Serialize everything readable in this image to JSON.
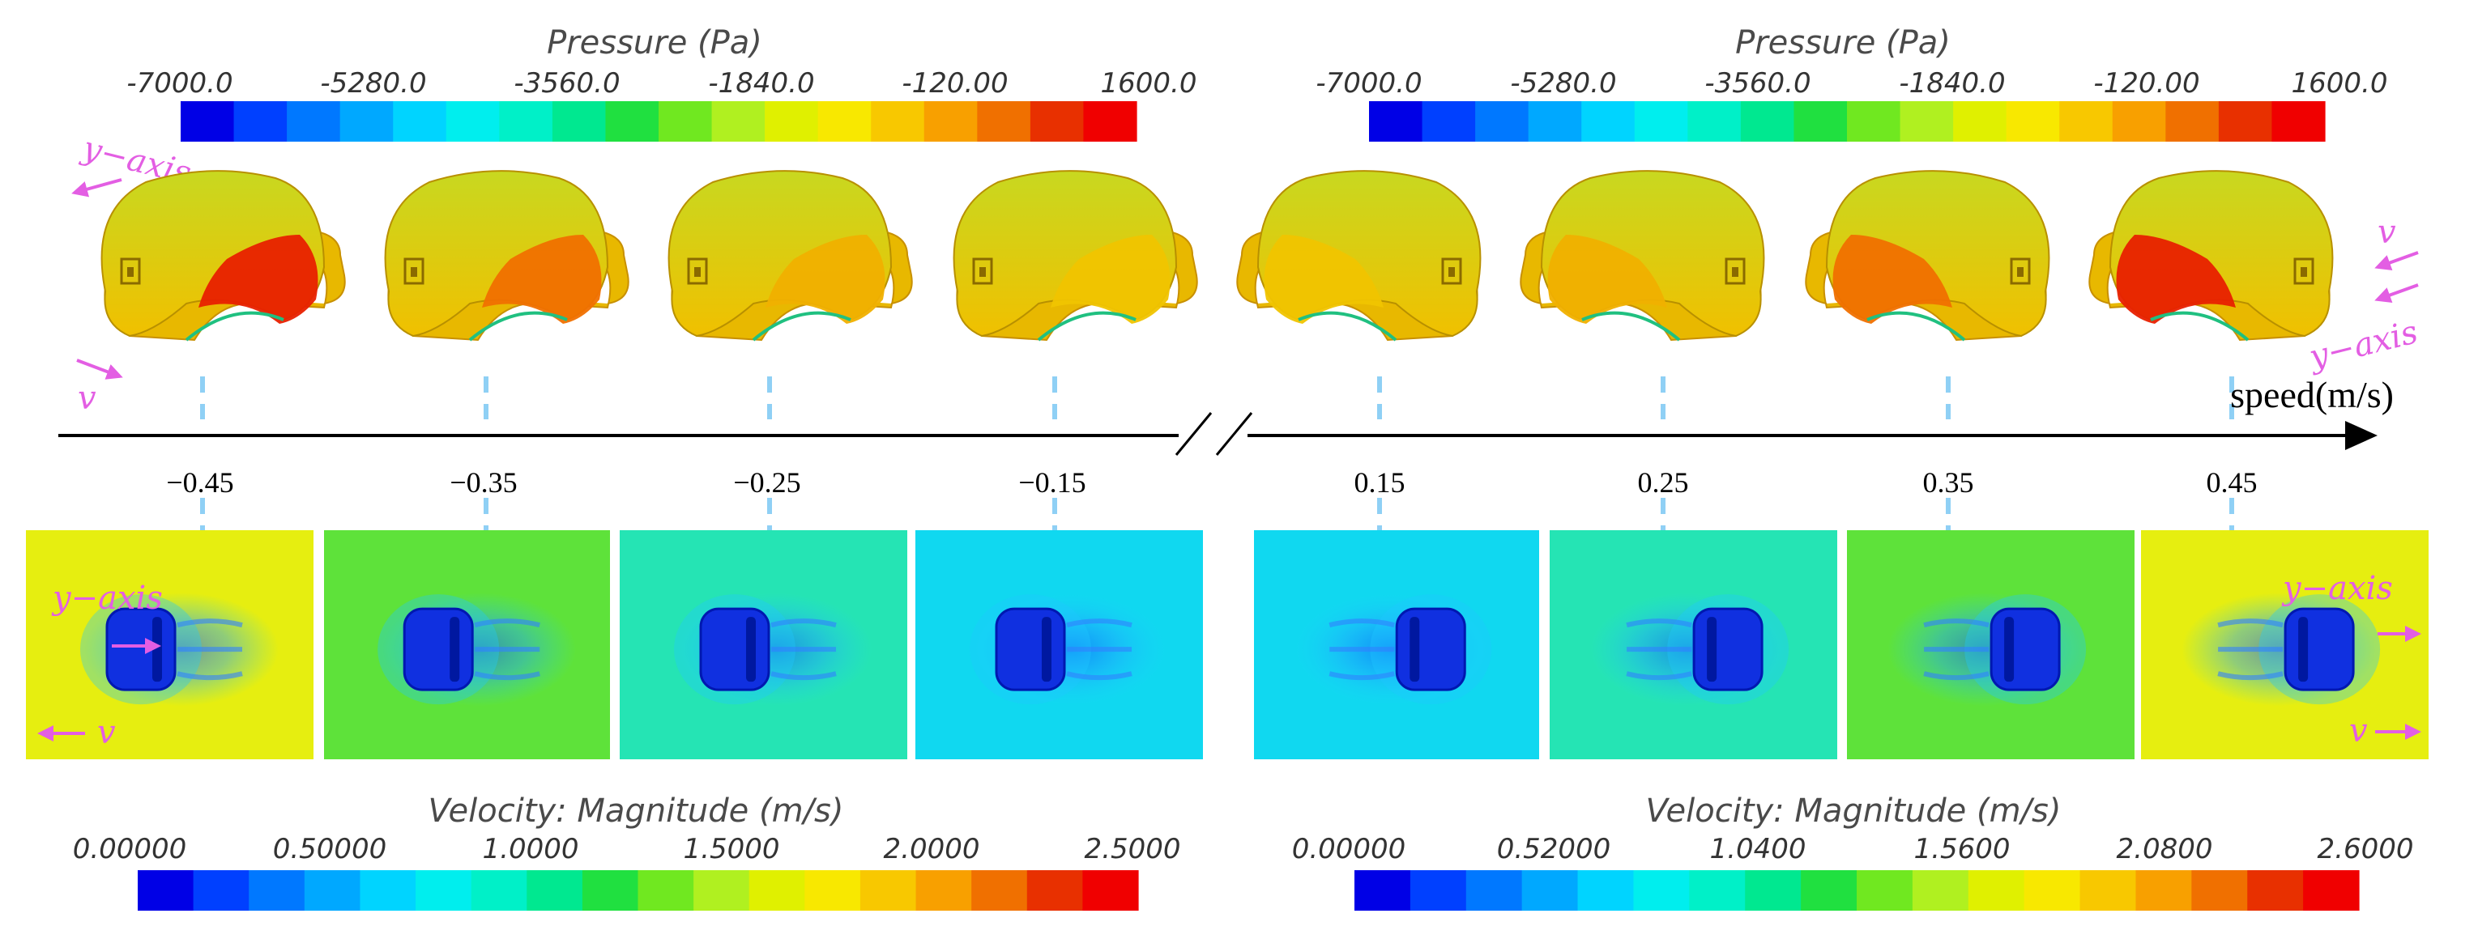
{
  "colors": {
    "jet": [
      "#0000e6",
      "#0040ff",
      "#0078ff",
      "#00a8ff",
      "#00d4ff",
      "#00eeee",
      "#00f0c8",
      "#00e890",
      "#20e040",
      "#70e820",
      "#b0f020",
      "#e0f000",
      "#f8e800",
      "#f8c800",
      "#f8a000",
      "#f07000",
      "#e83000",
      "#f00000"
    ],
    "dashed_line": "#8fd0f5",
    "annotation": "#e35ee3",
    "axis": "#000000"
  },
  "pressure_colorbars": [
    {
      "title": "Pressure (Pa)",
      "ticks": [
        "-7000.0",
        "-5280.0",
        "-3560.0",
        "-1840.0",
        "-120.00",
        "1600.0"
      ]
    },
    {
      "title": "Pressure (Pa)",
      "ticks": [
        "-7000.0",
        "-5280.0",
        "-3560.0",
        "-1840.0",
        "-120.00",
        "1600.0"
      ]
    }
  ],
  "velocity_colorbars": [
    {
      "title": "Velocity: Magnitude (m/s)",
      "ticks": [
        "0.00000",
        "0.50000",
        "1.0000",
        "1.5000",
        "2.0000",
        "2.5000"
      ]
    },
    {
      "title": "Velocity: Magnitude (m/s)",
      "ticks": [
        "0.00000",
        "0.52000",
        "1.0400",
        "1.5600",
        "2.0800",
        "2.6000"
      ]
    }
  ],
  "speed_axis": {
    "label": "speed(m/s)",
    "ticks": [
      "−0.45",
      "−0.35",
      "−0.25",
      "−0.15",
      "0.15",
      "0.25",
      "0.35",
      "0.45"
    ]
  },
  "annotations": {
    "y_axis": "y−axis",
    "v": "v"
  },
  "snapshots": [
    {
      "speed": -0.45,
      "pressure_level": 0.9,
      "background": "#e6ee10"
    },
    {
      "speed": -0.35,
      "pressure_level": 0.75,
      "background": "#5ee23a"
    },
    {
      "speed": -0.25,
      "pressure_level": 0.6,
      "background": "#25e4b4"
    },
    {
      "speed": -0.15,
      "pressure_level": 0.45,
      "background": "#10d8f0"
    },
    {
      "speed": 0.15,
      "pressure_level": 0.45,
      "background": "#10d8f0"
    },
    {
      "speed": 0.25,
      "pressure_level": 0.6,
      "background": "#25e4b4"
    },
    {
      "speed": 0.35,
      "pressure_level": 0.75,
      "background": "#5ee23a"
    },
    {
      "speed": 0.45,
      "pressure_level": 0.9,
      "background": "#e6ee10"
    }
  ]
}
